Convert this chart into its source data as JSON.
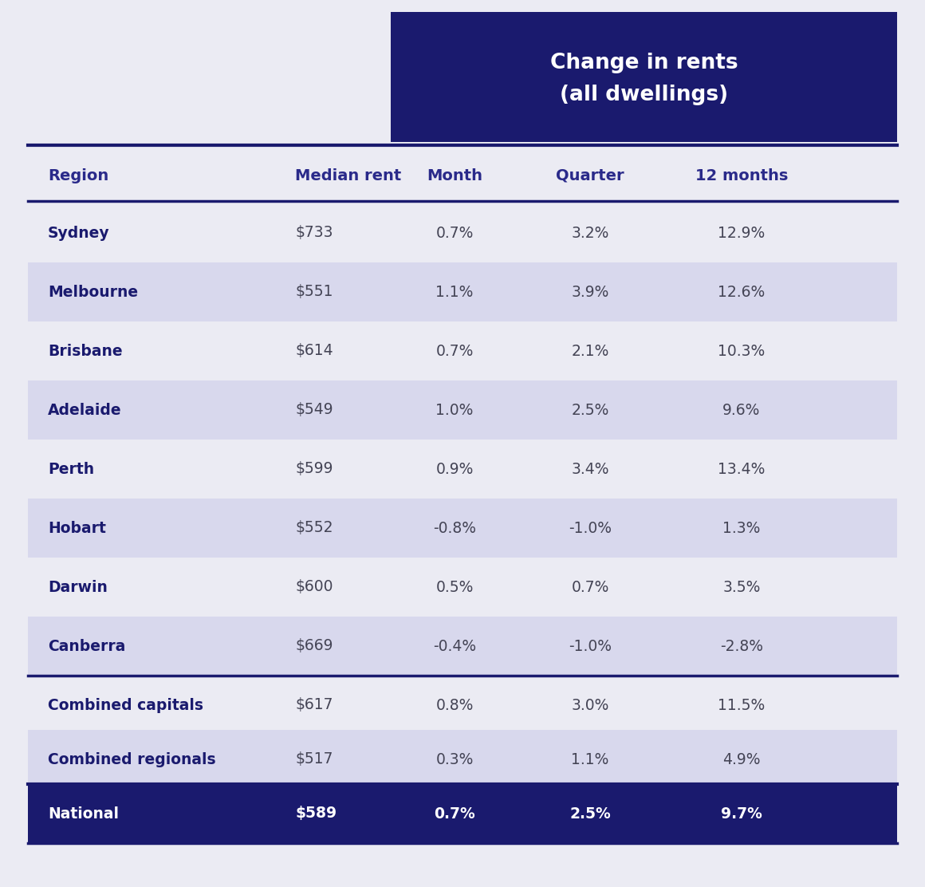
{
  "header_box_color": "#1a1a6e",
  "header_text_line1": "Change in rents",
  "header_text_line2": "(all dwellings)",
  "header_text_color": "#ffffff",
  "bg_color": "#ebebf3",
  "col_headers": [
    "Region",
    "Median rent",
    "Month",
    "Quarter",
    "12 months"
  ],
  "col_header_color": "#2a2a8a",
  "separator_color": "#1a1a6e",
  "rows": [
    {
      "region": "Sydney",
      "median": "$733",
      "month": "0.7%",
      "quarter": "3.2%",
      "months12": "12.9%",
      "shaded": false
    },
    {
      "region": "Melbourne",
      "median": "$551",
      "month": "1.1%",
      "quarter": "3.9%",
      "months12": "12.6%",
      "shaded": true
    },
    {
      "region": "Brisbane",
      "median": "$614",
      "month": "0.7%",
      "quarter": "2.1%",
      "months12": "10.3%",
      "shaded": false
    },
    {
      "region": "Adelaide",
      "median": "$549",
      "month": "1.0%",
      "quarter": "2.5%",
      "months12": "9.6%",
      "shaded": true
    },
    {
      "region": "Perth",
      "median": "$599",
      "month": "0.9%",
      "quarter": "3.4%",
      "months12": "13.4%",
      "shaded": false
    },
    {
      "region": "Hobart",
      "median": "$552",
      "month": "-0.8%",
      "quarter": "-1.0%",
      "months12": "1.3%",
      "shaded": true
    },
    {
      "region": "Darwin",
      "median": "$600",
      "month": "0.5%",
      "quarter": "0.7%",
      "months12": "3.5%",
      "shaded": false
    },
    {
      "region": "Canberra",
      "median": "$669",
      "month": "-0.4%",
      "quarter": "-1.0%",
      "months12": "-2.8%",
      "shaded": true
    }
  ],
  "summary_rows": [
    {
      "region": "Combined capitals",
      "median": "$617",
      "month": "0.8%",
      "quarter": "3.0%",
      "months12": "11.5%",
      "shaded": false
    },
    {
      "region": "Combined regionals",
      "median": "$517",
      "month": "0.3%",
      "quarter": "1.1%",
      "months12": "4.9%",
      "shaded": true
    }
  ],
  "national_row": {
    "region": "National",
    "median": "$589",
    "month": "0.7%",
    "quarter": "2.5%",
    "months12": "9.7%"
  },
  "shaded_row_color": "#d8d8ed",
  "national_row_bg": "#1a1a6e",
  "national_text_color": "#ffffff",
  "data_text_color": "#444455",
  "region_bold_color": "#1a1a6e",
  "data_fontsize": 13.5,
  "col_header_fontsize": 14,
  "header_fontsize": 19
}
